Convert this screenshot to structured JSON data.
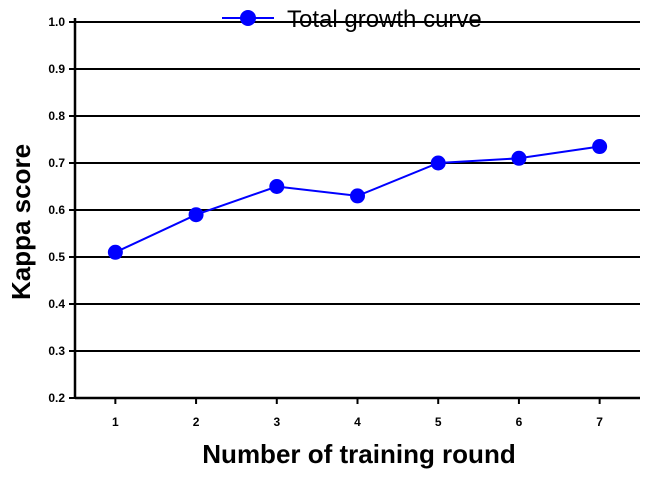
{
  "chart_data": {
    "type": "line",
    "title": "",
    "xlabel": "Number of training round",
    "ylabel": "Kappa score",
    "x": [
      1,
      2,
      3,
      4,
      5,
      6,
      7
    ],
    "x_ticks": [
      "1",
      "2",
      "3",
      "4",
      "5",
      "6",
      "7"
    ],
    "y_ticks": [
      "0.2",
      "0.3",
      "0.4",
      "0.5",
      "0.6",
      "0.7",
      "0.8",
      "0.9",
      "1.0"
    ],
    "ylim": [
      0.2,
      1.0
    ],
    "xlim": [
      0.5,
      7.5
    ],
    "grid": "horizontal",
    "legend_position": "top",
    "series": [
      {
        "name": "Total growth curve",
        "color": "#0000ff",
        "values": [
          0.51,
          0.59,
          0.65,
          0.63,
          0.7,
          0.71,
          0.735
        ]
      }
    ]
  }
}
